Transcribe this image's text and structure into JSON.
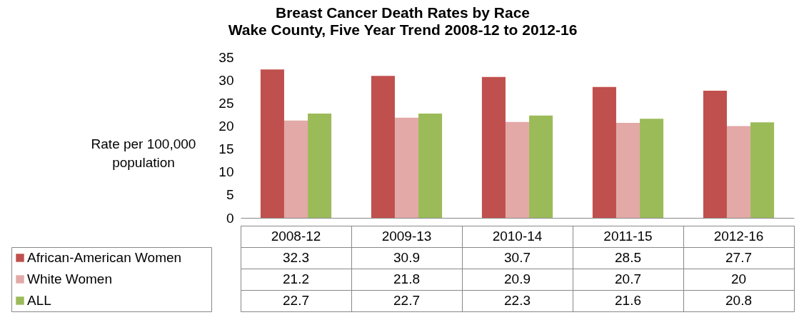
{
  "chart_data": {
    "type": "bar",
    "title": "Breast Cancer Death Rates by Race",
    "subtitle": "Wake County, Five Year Trend 2008-12 to 2012-16",
    "ylabel": "Rate per 100,000 population",
    "categories": [
      "2008-12",
      "2009-13",
      "2010-14",
      "2011-15",
      "2012-16"
    ],
    "series": [
      {
        "name": "African-American Women",
        "color": "#c0504d",
        "values": [
          32.3,
          30.9,
          30.7,
          28.5,
          27.7
        ]
      },
      {
        "name": "White Women",
        "color": "#e3a9a7",
        "values": [
          21.2,
          21.8,
          20.9,
          20.7,
          20
        ]
      },
      {
        "name": "ALL",
        "color": "#9bbb59",
        "values": [
          22.7,
          22.7,
          22.3,
          21.6,
          20.8
        ]
      }
    ],
    "ylim": [
      0,
      35
    ],
    "yticks": [
      0,
      5,
      10,
      15,
      20,
      25,
      30,
      35
    ],
    "grid": false,
    "legend": "bottom left",
    "data_labels": true
  }
}
